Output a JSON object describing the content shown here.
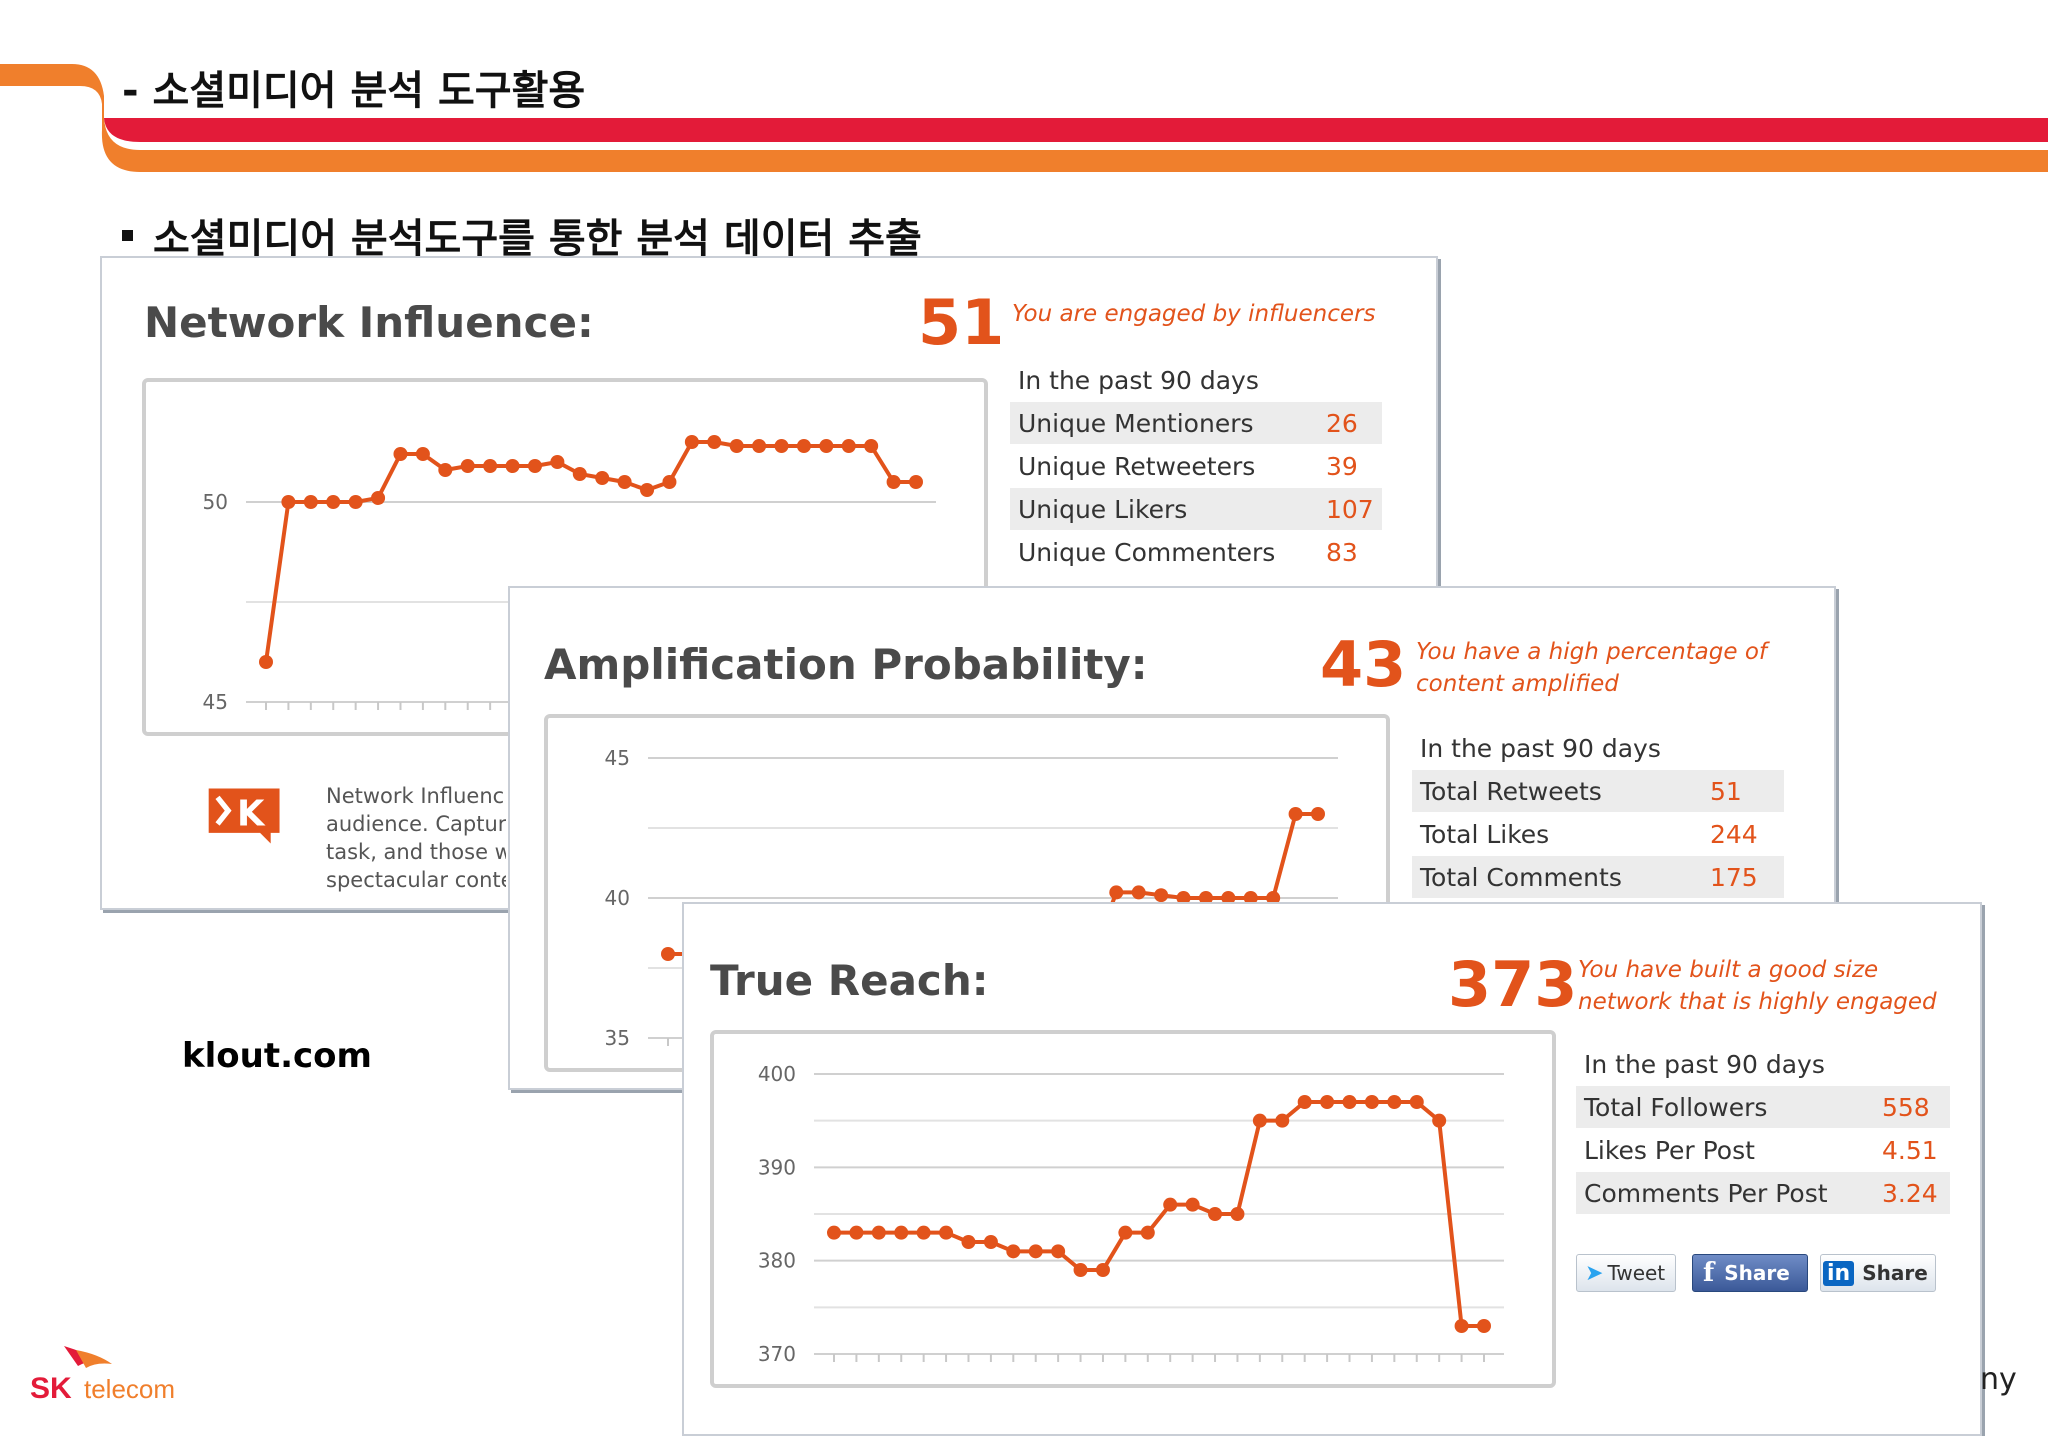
{
  "slide": {
    "title": "- 소셜미디어 분석 도구활용",
    "bullet_heading": "소셜미디어 분석도구를 통한 분석 데이터 추출",
    "site_label": "klout.com",
    "corner_text": "ny"
  },
  "brand": {
    "logo_text_sk": "SK",
    "logo_text_telecom": "telecom",
    "colors": {
      "accent_orange": "#e2531b",
      "header_orange": "#f07f2c",
      "header_red": "#e31b39"
    }
  },
  "network_influence": {
    "title": "Network Influence:",
    "score": "51",
    "tagline": "You are engaged by influencers",
    "period": "In the past 90 days",
    "stats": [
      {
        "label": "Unique Mentioners",
        "value": "26"
      },
      {
        "label": "Unique Retweeters",
        "value": "39"
      },
      {
        "label": "Unique Likers",
        "value": "107"
      },
      {
        "label": "Unique Commenters",
        "value": "83"
      }
    ],
    "description_lines": [
      "Network Influenc",
      "audience. Captur",
      "task, and those w",
      "spectacular conte"
    ],
    "logo_letter": "K"
  },
  "amplification": {
    "title": "Amplification Probability:",
    "score": "43",
    "tagline_lines": [
      "You have a high percentage of",
      "content amplified"
    ],
    "period": "In the past 90 days",
    "stats": [
      {
        "label": "Total Retweets",
        "value": "51"
      },
      {
        "label": "Total Likes",
        "value": "244"
      },
      {
        "label": "Total Comments",
        "value": "175"
      }
    ]
  },
  "true_reach": {
    "title": "True Reach:",
    "score": "373",
    "tagline_lines": [
      "You have built a good size",
      "network that is highly engaged"
    ],
    "period": "In the past 90 days",
    "stats": [
      {
        "label": "Total Followers",
        "value": "558"
      },
      {
        "label": "Likes Per Post",
        "value": "4.51"
      },
      {
        "label": "Comments Per Post",
        "value": "3.24"
      }
    ],
    "share_buttons": {
      "tweet": "Tweet",
      "facebook": "Share",
      "linkedin": "Share"
    }
  },
  "chart_data": [
    {
      "type": "line",
      "title": "Network Influence",
      "yticks": [
        "50",
        "45"
      ],
      "ylim": [
        45,
        52
      ],
      "values": [
        46.0,
        50.0,
        50.0,
        50.0,
        50.0,
        50.1,
        51.2,
        51.2,
        50.8,
        50.9,
        50.9,
        50.9,
        50.9,
        51.0,
        50.7,
        50.6,
        50.5,
        50.3,
        50.5,
        51.5,
        51.5,
        51.4,
        51.4,
        51.4,
        51.4,
        51.4,
        51.4,
        51.4,
        50.5,
        50.5
      ]
    },
    {
      "type": "line",
      "title": "Amplification Probability",
      "yticks": [
        "45",
        "40",
        "35"
      ],
      "ylim": [
        35,
        45
      ],
      "values": [
        38,
        38,
        38,
        38,
        38,
        38,
        38,
        38,
        38,
        38,
        38,
        38,
        38,
        38,
        38,
        38,
        38,
        38,
        38,
        38,
        40.2,
        40.2,
        40.1,
        40.0,
        40.0,
        40.0,
        40.0,
        40.0,
        43.0,
        43.0
      ]
    },
    {
      "type": "line",
      "title": "True Reach",
      "yticks": [
        "400",
        "390",
        "380",
        "370"
      ],
      "ylim": [
        370,
        400
      ],
      "values": [
        383,
        383,
        383,
        383,
        383,
        383,
        382,
        382,
        381,
        381,
        381,
        379,
        379,
        383,
        383,
        386,
        386,
        385,
        385,
        395,
        395,
        397,
        397,
        397,
        397,
        397,
        397,
        395,
        373,
        373
      ]
    }
  ]
}
